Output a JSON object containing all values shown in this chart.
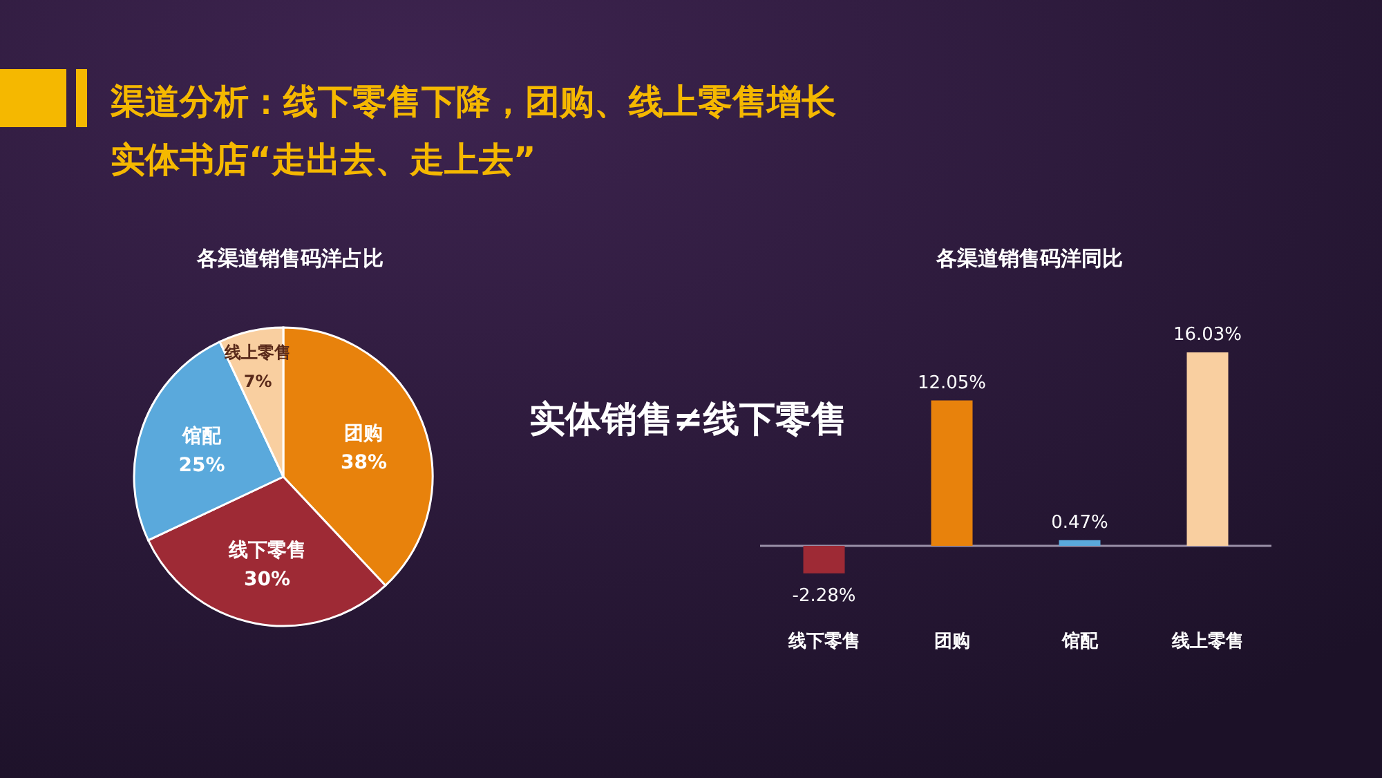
{
  "chart_data": [
    {
      "type": "other",
      "title": "渠道分析：线下零售下降，团购、线上零售增长",
      "subtitle": "实体书店“走出去、走上去”",
      "annotations": [
        "实体销售≠线下零售"
      ]
    },
    {
      "type": "pie",
      "title": "各渠道销售码洋占比",
      "categories": [
        "团购",
        "线下零售",
        "馆配",
        "线上零售"
      ],
      "values": [
        38,
        30,
        25,
        7
      ],
      "colors": [
        "#e8820c",
        "#9e2a35",
        "#5aa9dc",
        "#f9cfa0"
      ],
      "value_labels": [
        "38%",
        "30%",
        "25%",
        "7%"
      ]
    },
    {
      "type": "bar",
      "title": "各渠道销售码洋同比",
      "categories": [
        "线下零售",
        "团购",
        "馆配",
        "线上零售"
      ],
      "values": [
        -2.28,
        12.05,
        0.47,
        16.03
      ],
      "colors": [
        "#9e2a35",
        "#e8820c",
        "#5aa9dc",
        "#f9cfa0"
      ],
      "value_labels": [
        "-2.28%",
        "12.05%",
        "0.47%",
        "16.03%"
      ]
    }
  ]
}
